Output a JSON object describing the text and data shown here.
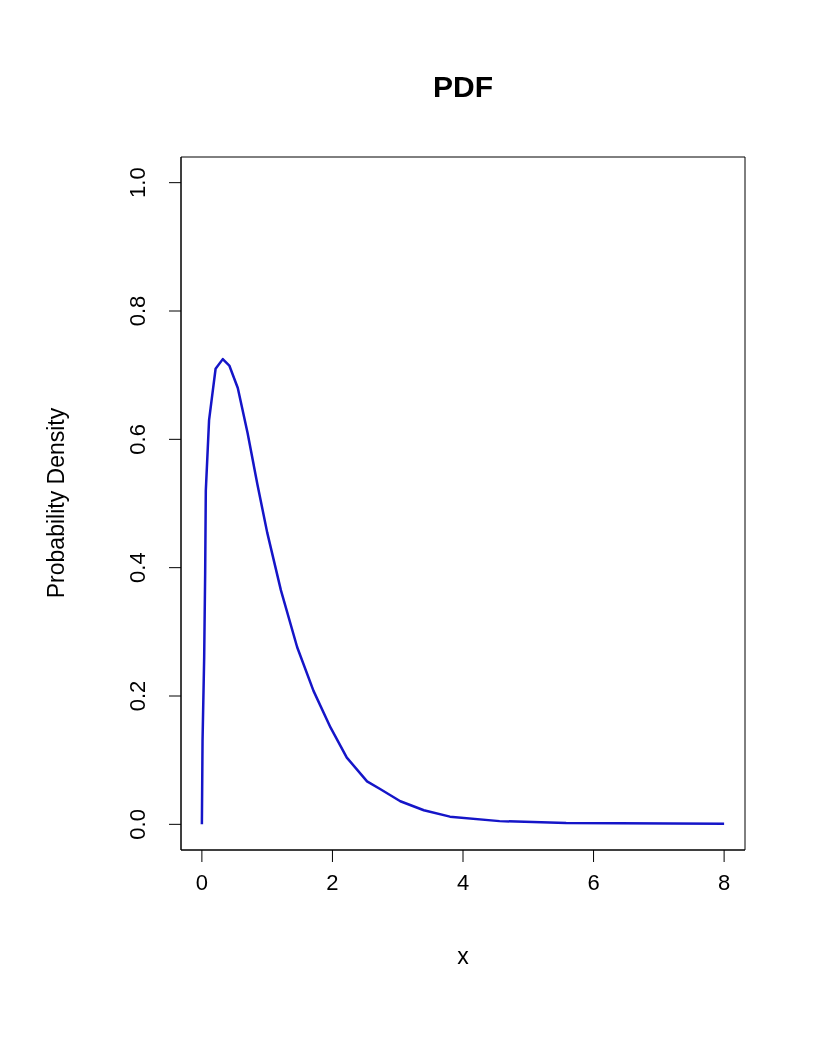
{
  "chart_data": {
    "type": "line",
    "title": "PDF",
    "xlabel": "x",
    "ylabel": "Probability Density",
    "x": [
      0,
      0.01,
      0.035,
      0.05,
      0.06,
      0.11,
      0.16,
      0.21,
      0.32,
      0.42,
      0.55,
      0.7,
      0.85,
      1.0,
      1.21,
      1.46,
      1.71,
      1.97,
      2.22,
      2.53,
      2.73,
      3.04,
      3.4,
      3.8,
      4.56,
      5.58,
      8
    ],
    "series": [
      {
        "color": "#1515c8",
        "values": [
          0,
          0.13,
          0.26,
          0.39,
          0.52,
          0.63,
          0.67,
          0.71,
          0.725,
          0.715,
          0.68,
          0.61,
          0.53,
          0.455,
          0.365,
          0.276,
          0.208,
          0.151,
          0.104,
          0.067,
          0.055,
          0.036,
          0.022,
          0.012,
          0.005,
          0.002,
          0.001
        ]
      }
    ],
    "xlim": [
      -0.32,
      8.32
    ],
    "xticks": [
      0,
      2,
      4,
      6,
      8
    ],
    "ylim": [
      -0.04,
      1.04
    ],
    "yticks": [
      {
        "value": 0,
        "label": "0.0"
      },
      {
        "value": 0.2,
        "label": "0.2"
      },
      {
        "value": 0.4,
        "label": "0.4"
      },
      {
        "value": 0.6,
        "label": "0.6"
      },
      {
        "value": 0.8,
        "label": "0.8"
      },
      {
        "value": 1,
        "label": "1.0"
      }
    ],
    "grid": false,
    "legend": false,
    "marker": "none",
    "line_style": "solid"
  }
}
